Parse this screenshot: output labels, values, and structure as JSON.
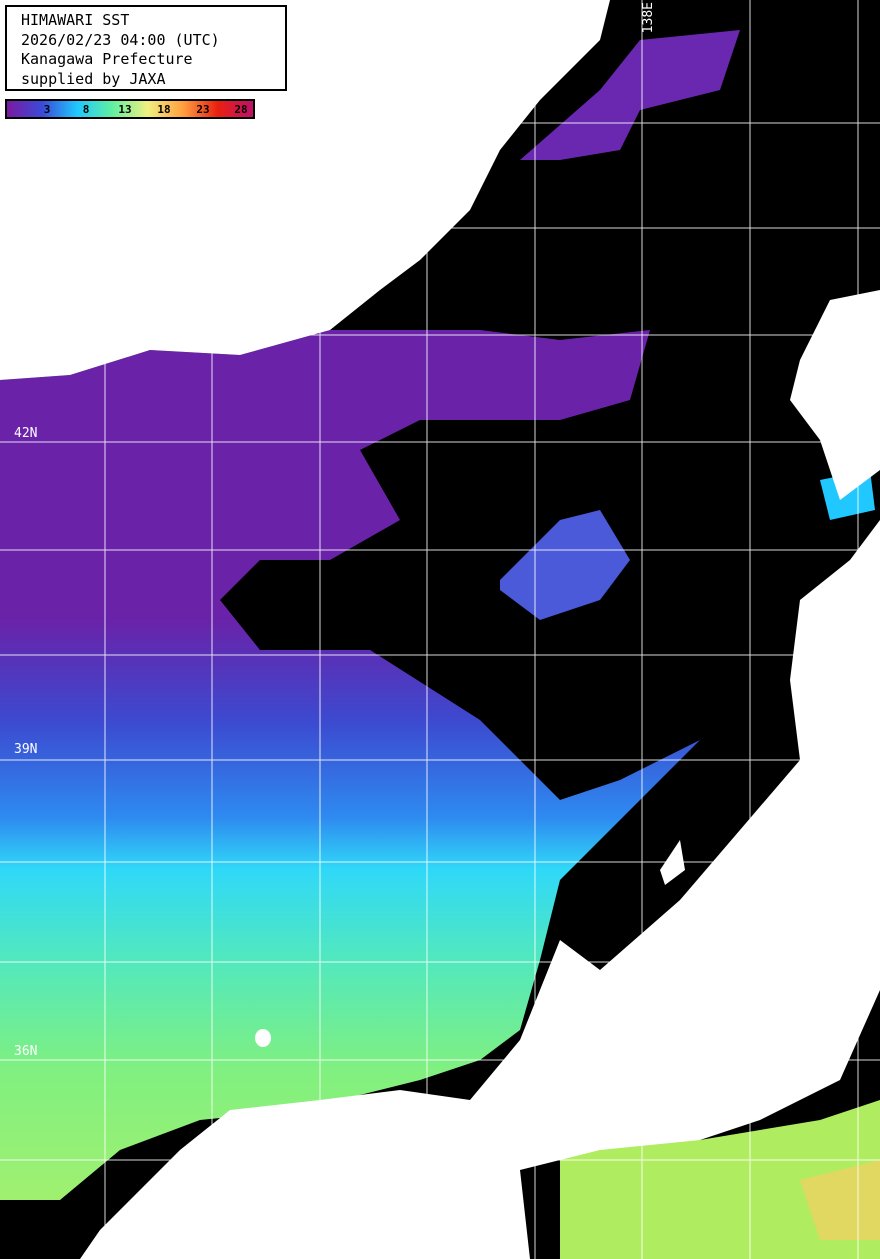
{
  "header": {
    "title": "HIMAWARI SST",
    "datetime": "2026/02/23 04:00 (UTC)",
    "producer": "Kanagawa Prefecture",
    "credit": "supplied by JAXA"
  },
  "colorbar": {
    "ticks": [
      "3",
      "8",
      "13",
      "18",
      "23",
      "28"
    ],
    "colors": [
      "#7a1aa0",
      "#3a4ad8",
      "#20c8ff",
      "#60f0a0",
      "#f0f080",
      "#ffa040",
      "#e82010",
      "#c0106a"
    ]
  },
  "grid_labels": {
    "lat": [
      "42N",
      "39N",
      "36N"
    ],
    "lon": [
      "138E"
    ]
  },
  "colors": {
    "land": "#ffffff",
    "no_data": "#000000",
    "grid": "#ffffff"
  }
}
